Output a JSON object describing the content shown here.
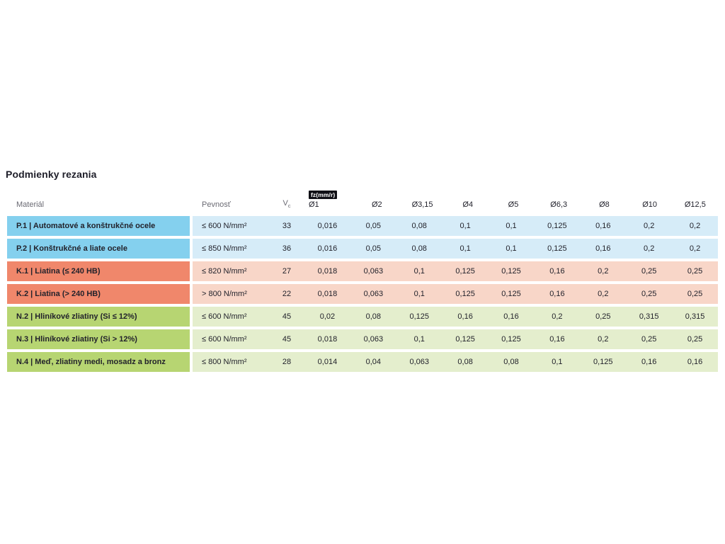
{
  "page": {
    "title": "Podmienky rezania"
  },
  "colors": {
    "steel_dark": "#84d0ee",
    "steel_light": "#d6ecf8",
    "cast_iron_dark": "#f0876b",
    "cast_iron_light": "#f8d6c8",
    "non_ferrous_dark": "#b7d572",
    "non_ferrous_light": "#e4eecd",
    "badge_bg": "#101016",
    "badge_text": "#ffffff",
    "header_text": "#6a6a73",
    "body_text": "#22222b"
  },
  "table": {
    "headers": {
      "material": "Materiál",
      "strength": "Pevnosť",
      "vc": "V",
      "vc_sub": "c",
      "feed_badge": "fz(mm/r)",
      "diameters": [
        "Ø1",
        "Ø2",
        "Ø3,15",
        "Ø4",
        "Ø5",
        "Ø6,3",
        "Ø8",
        "Ø10",
        "Ø12,5"
      ]
    },
    "rows": [
      {
        "material": "P.1 | Automatové a konštrukčné ocele",
        "strength": "≤ 600 N/mm²",
        "vc": "33",
        "values": [
          "0,016",
          "0,05",
          "0,08",
          "0,1",
          "0,1",
          "0,125",
          "0,16",
          "0,2",
          "0,2"
        ]
      },
      {
        "material": "P.2 | Konštrukčné a liate ocele",
        "strength": "≤ 850 N/mm²",
        "vc": "36",
        "values": [
          "0,016",
          "0,05",
          "0,08",
          "0,1",
          "0,1",
          "0,125",
          "0,16",
          "0,2",
          "0,2"
        ]
      },
      {
        "material": "K.1 | Liatina (≤ 240 HB)",
        "strength": "≤ 820 N/mm²",
        "vc": "27",
        "values": [
          "0,018",
          "0,063",
          "0,1",
          "0,125",
          "0,125",
          "0,16",
          "0,2",
          "0,25",
          "0,25"
        ]
      },
      {
        "material": "K.2 | Liatina (> 240 HB)",
        "strength": "> 800 N/mm²",
        "vc": "22",
        "values": [
          "0,018",
          "0,063",
          "0,1",
          "0,125",
          "0,125",
          "0,16",
          "0,2",
          "0,25",
          "0,25"
        ]
      },
      {
        "material": "N.2 | Hliníkové zliatiny (Si ≤ 12%)",
        "strength": "≤ 600 N/mm²",
        "vc": "45",
        "values": [
          "0,02",
          "0,08",
          "0,125",
          "0,16",
          "0,16",
          "0,2",
          "0,25",
          "0,315",
          "0,315"
        ]
      },
      {
        "material": "N.3 | Hliníkové zliatiny (Si > 12%)",
        "strength": "≤ 600 N/mm²",
        "vc": "45",
        "values": [
          "0,018",
          "0,063",
          "0,1",
          "0,125",
          "0,125",
          "0,16",
          "0,2",
          "0,25",
          "0,25"
        ]
      },
      {
        "material": "N.4 | Meď, zliatiny medi, mosadz a bronz",
        "strength": "≤ 800 N/mm²",
        "vc": "28",
        "values": [
          "0,014",
          "0,04",
          "0,063",
          "0,08",
          "0,08",
          "0,1",
          "0,125",
          "0,16",
          "0,16"
        ]
      }
    ]
  }
}
